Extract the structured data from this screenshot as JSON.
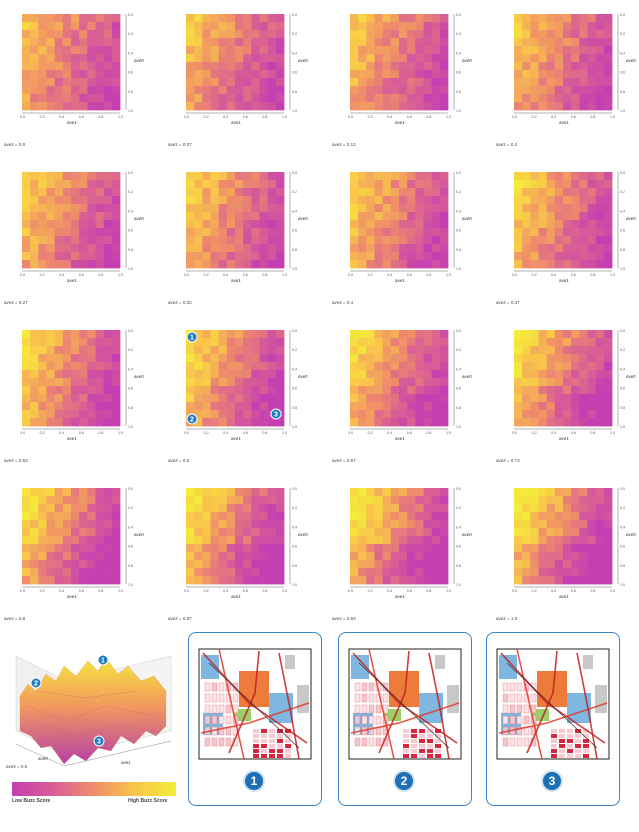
{
  "panels": [
    {
      "caption": "ave2 = 0.0",
      "xlabel": "ave1",
      "ylabel": "ave0"
    },
    {
      "caption": "ave2 = 0.07",
      "xlabel": "ave1",
      "ylabel": "ave0"
    },
    {
      "caption": "ave2 = 0.13",
      "xlabel": "ave1",
      "ylabel": "ave0"
    },
    {
      "caption": "ave2 = 0.2",
      "xlabel": "ave1",
      "ylabel": "ave0"
    },
    {
      "caption": "ave2 = 0.27",
      "xlabel": "ave1",
      "ylabel": "ave0"
    },
    {
      "caption": "ave2 = 0.33",
      "xlabel": "ave1",
      "ylabel": "ave0"
    },
    {
      "caption": "ave2 = 0.4",
      "xlabel": "ave1",
      "ylabel": "ave0"
    },
    {
      "caption": "ave2 = 0.47",
      "xlabel": "ave1",
      "ylabel": "ave0"
    },
    {
      "caption": "ave2 = 0.53",
      "xlabel": "ave1",
      "ylabel": "ave0"
    },
    {
      "caption": "ave2 = 0.6",
      "xlabel": "ave1",
      "ylabel": "ave0"
    },
    {
      "caption": "ave2 = 0.67",
      "xlabel": "ave1",
      "ylabel": "ave0"
    },
    {
      "caption": "ave2 = 0.73",
      "xlabel": "ave1",
      "ylabel": "ave0"
    },
    {
      "caption": "ave2 = 0.8",
      "xlabel": "ave1",
      "ylabel": "ave0"
    },
    {
      "caption": "ave2 = 0.87",
      "xlabel": "ave1",
      "ylabel": "ave0"
    },
    {
      "caption": "ave2 = 0.93",
      "xlabel": "ave1",
      "ylabel": "ave0"
    },
    {
      "caption": "ave2 = 1.0",
      "xlabel": "ave1",
      "ylabel": "ave0"
    }
  ],
  "ticks": [
    "0.0",
    "0.2",
    "0.4",
    "0.6",
    "0.8",
    "1.0"
  ],
  "markers": [
    "1",
    "2",
    "3"
  ],
  "surface": {
    "caption": "ave2 = 0.6",
    "xlabel": "ave1",
    "ylabel": "ave0"
  },
  "maps": [
    {
      "label": "1"
    },
    {
      "label": "2"
    },
    {
      "label": "3"
    }
  ],
  "colorbar": {
    "low": "Low Buzz Score",
    "high": "High Buzz Score",
    "colors": [
      "#c43fb1",
      "#d95e96",
      "#ef8d6a",
      "#f9c64a",
      "#f4ec3a"
    ]
  },
  "chart_data": {
    "type": "heatmap",
    "x_axis": "ave1",
    "y_axis": "ave0",
    "slice_variable": "ave2",
    "slices": [
      0.0,
      0.07,
      0.13,
      0.2,
      0.27,
      0.33,
      0.4,
      0.47,
      0.53,
      0.6,
      0.67,
      0.73,
      0.8,
      0.87,
      0.93,
      1.0
    ],
    "xlim": [
      0,
      1
    ],
    "ylim": [
      0,
      1
    ],
    "colorbar": [
      "Low Buzz Score",
      "High Buzz Score"
    ],
    "grid": false
  }
}
